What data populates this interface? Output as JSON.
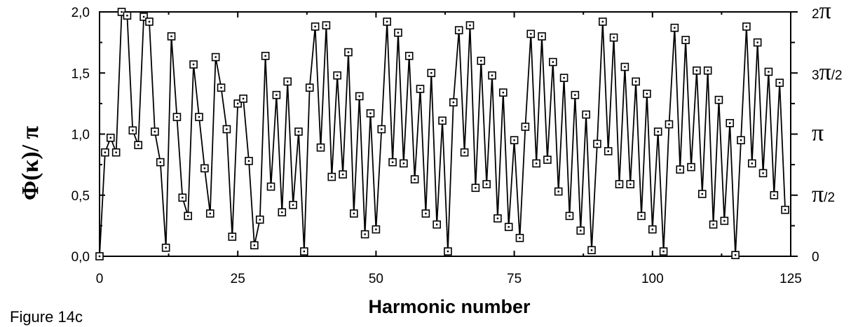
{
  "chart_data": {
    "type": "line",
    "caption": "Figure 14c",
    "xlabel": "Harmonic number",
    "ylabel": "Φ(κ)/ π",
    "xlim": [
      0,
      125
    ],
    "ylim": [
      0,
      2
    ],
    "x_ticks": [
      "0",
      "25",
      "50",
      "75",
      "100",
      "125"
    ],
    "y_ticks": [
      "0,0",
      "0,5",
      "1,0",
      "1,5",
      "2,0"
    ],
    "right_ticks": [
      {
        "value": 0,
        "label": "0"
      },
      {
        "value": 0.5,
        "label": "π/2"
      },
      {
        "value": 1,
        "label": "π"
      },
      {
        "value": 1.5,
        "label": "3π/2"
      },
      {
        "value": 2,
        "label": "2π"
      }
    ],
    "grid": false,
    "marker": "square",
    "series": [
      {
        "x": [
          0,
          1,
          2,
          3,
          4,
          5,
          6,
          7,
          8,
          9,
          10,
          11,
          12,
          13,
          14,
          15,
          16,
          17,
          18,
          19,
          20,
          21,
          22,
          23,
          24,
          25,
          26,
          27,
          28,
          29,
          30,
          31,
          32,
          33,
          34,
          35,
          36,
          37,
          38,
          39,
          40,
          41,
          42,
          43,
          44,
          45,
          46,
          47,
          48,
          49,
          50,
          51,
          52,
          53,
          54,
          55,
          56,
          57,
          58,
          59,
          60,
          61,
          62,
          63,
          64,
          65,
          66,
          67,
          68,
          69,
          70,
          71,
          72,
          73,
          74,
          75,
          76,
          77,
          78,
          79,
          80,
          81,
          82,
          83,
          84,
          85,
          86,
          87,
          88,
          89,
          90,
          91,
          92,
          93,
          94,
          95,
          96,
          97,
          98,
          99,
          100,
          101,
          102,
          103,
          104,
          105,
          106,
          107,
          108,
          109,
          110,
          111,
          112,
          113,
          114,
          115,
          116,
          117,
          118,
          119,
          120,
          121,
          122,
          123,
          124
        ],
        "y": [
          0.0,
          0.85,
          0.97,
          0.85,
          2.0,
          1.97,
          1.03,
          0.91,
          1.96,
          1.92,
          1.02,
          0.77,
          0.07,
          1.8,
          1.14,
          0.48,
          0.33,
          1.57,
          1.14,
          0.72,
          0.35,
          1.63,
          1.38,
          1.04,
          0.16,
          1.25,
          1.29,
          0.78,
          0.09,
          0.3,
          1.64,
          0.57,
          1.32,
          0.36,
          1.43,
          0.42,
          1.02,
          0.04,
          1.38,
          1.88,
          0.89,
          1.89,
          0.65,
          1.48,
          0.67,
          1.67,
          0.35,
          1.31,
          0.18,
          1.17,
          0.22,
          1.04,
          1.92,
          0.77,
          1.83,
          0.76,
          1.64,
          0.63,
          1.37,
          0.35,
          1.5,
          0.26,
          1.11,
          0.04,
          1.26,
          1.85,
          0.85,
          1.89,
          0.56,
          1.6,
          0.59,
          1.48,
          0.31,
          1.34,
          0.24,
          0.95,
          0.15,
          1.06,
          1.82,
          0.76,
          1.8,
          0.79,
          1.59,
          0.53,
          1.46,
          0.33,
          1.32,
          0.21,
          1.16,
          0.05,
          0.92,
          1.92,
          0.86,
          1.79,
          0.59,
          1.55,
          0.59,
          1.43,
          0.33,
          1.33,
          0.22,
          1.02,
          0.04,
          1.08,
          1.87,
          0.71,
          1.77,
          0.73,
          1.52,
          0.51,
          1.52,
          0.26,
          1.28,
          0.29,
          1.09,
          0.01,
          0.95,
          1.88,
          0.76,
          1.75,
          0.68,
          1.51,
          0.5,
          1.42,
          0.38
        ]
      }
    ]
  }
}
